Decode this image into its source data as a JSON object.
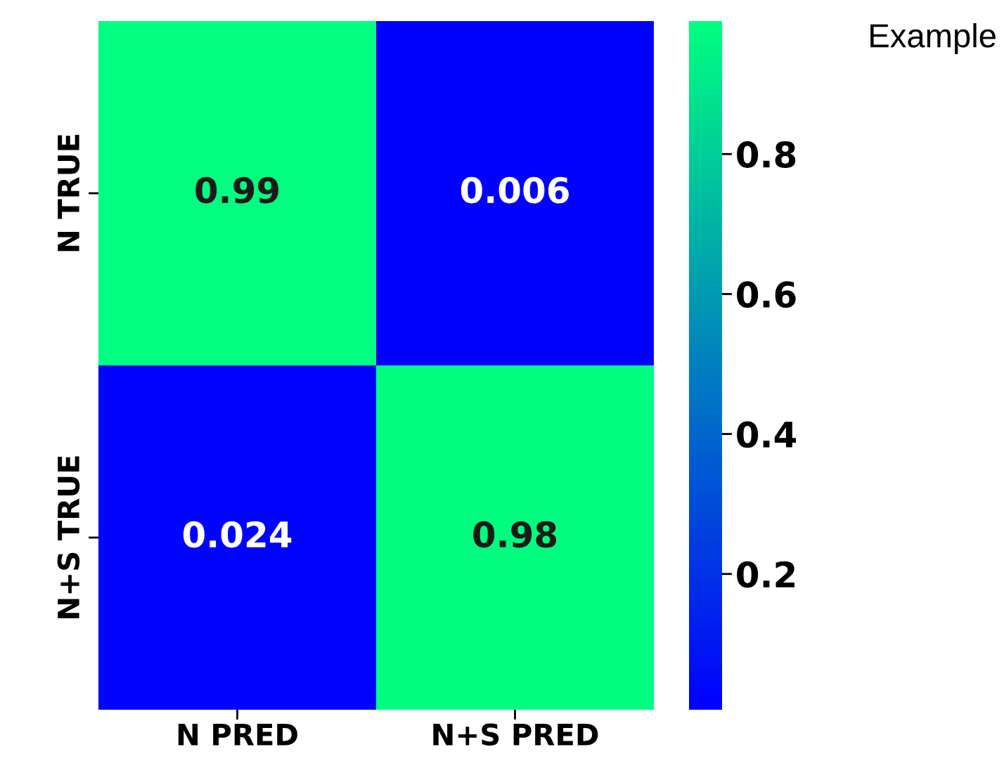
{
  "chart_data": {
    "type": "heatmap",
    "categories": [
      "N PRED",
      "N+S PRED"
    ],
    "y_categories": [
      "N TRUE",
      "N+S TRUE"
    ],
    "cells": [
      [
        0.99,
        0.006
      ],
      [
        0.024,
        0.98
      ]
    ],
    "data_labels": true,
    "clim": [
      0.006,
      0.99
    ],
    "cticks": [
      0.2,
      0.4,
      0.6,
      0.8
    ],
    "annotations": [
      "Example"
    ]
  }
}
